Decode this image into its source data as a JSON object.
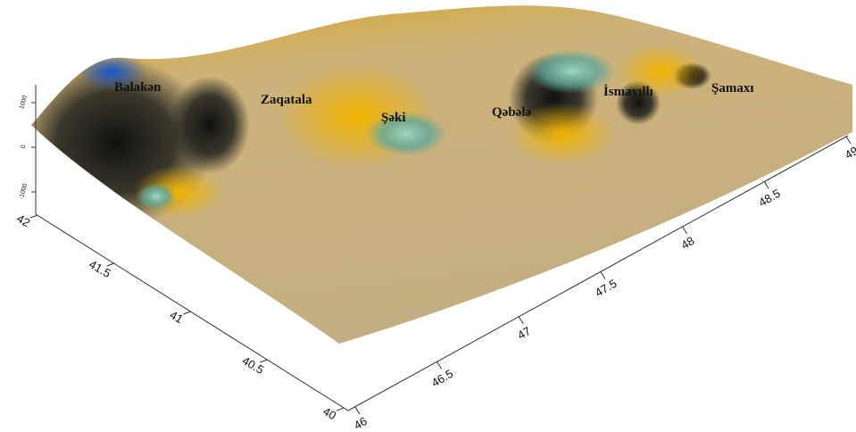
{
  "chart_data": {
    "type": "surface",
    "places": [
      "Balakən",
      "Zaqatala",
      "Şəki",
      "Qəbələ",
      "İsmayıllı",
      "Şamaxı"
    ],
    "xticks": [
      46,
      46.5,
      47,
      47.5,
      48,
      48.5,
      49
    ],
    "xlim": [
      46,
      49
    ],
    "yticks": [
      40,
      40.5,
      41,
      41.5,
      42
    ],
    "ylim": [
      40,
      42
    ],
    "zticks": [
      -1000,
      0,
      1000
    ],
    "zlim": [
      -1000,
      1000
    ]
  }
}
